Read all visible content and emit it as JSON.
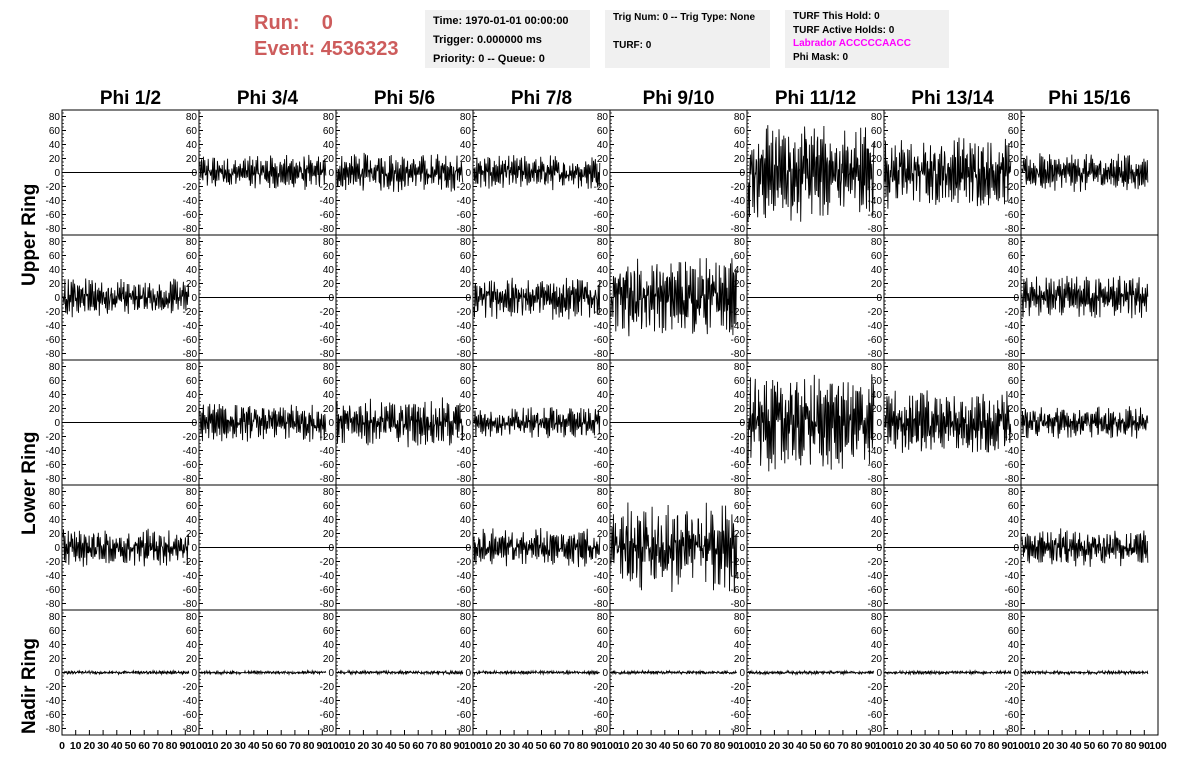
{
  "header": {
    "run_label": "Run:",
    "run_value": "0",
    "event_label": "Event:",
    "event_value": "4536323"
  },
  "info": {
    "time": "Time: 1970-01-01 00:00:00",
    "trigger": "Trigger: 0.000000 ms",
    "priority": "Priority: 0 -- Queue: 0",
    "trig_num": "Trig Num: 0 -- Trig Type: None",
    "turf": "TURF: 0",
    "turf_hold": "TURF This Hold: 0",
    "turf_active": "TURF Active Holds: 0",
    "labrador": "Labrador ACCCCCAACC",
    "phi_mask": "Phi Mask: 0"
  },
  "colors": {
    "accent": "#cd5c5c",
    "labrador": "#ff00ff",
    "info_bg": "#f0f0f0"
  },
  "rings": [
    "Upper Ring",
    "Lower Ring",
    "Nadir Ring"
  ],
  "phi_titles": [
    "Phi 1/2",
    "Phi 3/4",
    "Phi 5/6",
    "Phi 7/8",
    "Phi 9/10",
    "Phi 11/12",
    "Phi 13/14",
    "Phi 15/16"
  ],
  "chart_data": {
    "type": "line",
    "grid": false,
    "layout": "5 rows x 8 columns of waveform panels",
    "x_ticks": [
      0,
      10,
      20,
      30,
      40,
      50,
      60,
      70,
      80,
      90,
      100
    ],
    "xlim": [
      0,
      100
    ],
    "y_ticks": [
      -80,
      -60,
      -40,
      -20,
      0,
      20,
      40,
      60,
      80
    ],
    "ylim": [
      -85,
      85
    ],
    "panel_amplitudes": [
      [
        0,
        20,
        22,
        20,
        0,
        55,
        40,
        22
      ],
      [
        22,
        0,
        0,
        25,
        45,
        0,
        0,
        25
      ],
      [
        0,
        22,
        28,
        18,
        0,
        55,
        38,
        18
      ],
      [
        22,
        0,
        0,
        22,
        50,
        0,
        0,
        22
      ],
      [
        2,
        2,
        2,
        2,
        2,
        2,
        2,
        2
      ]
    ]
  }
}
